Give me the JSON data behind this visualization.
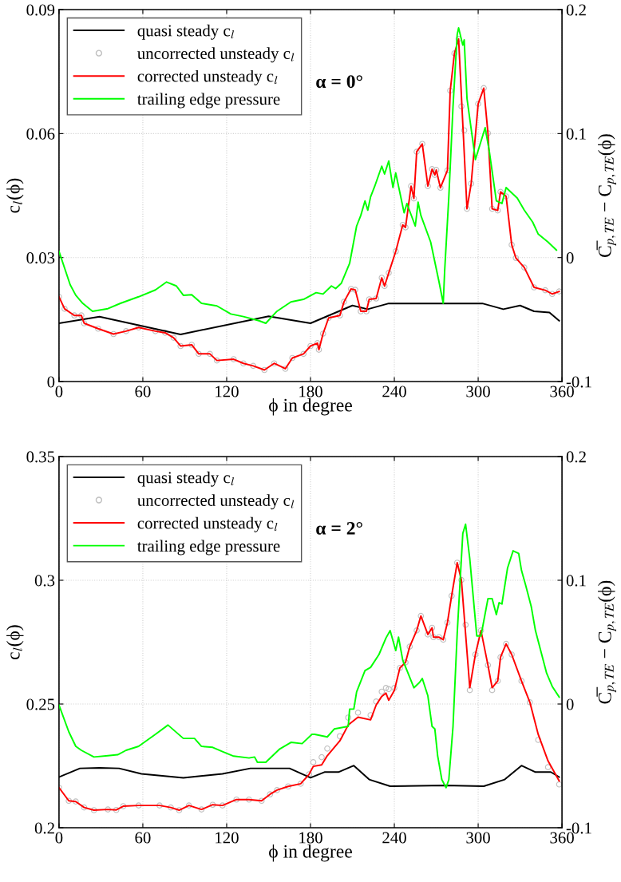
{
  "chart_data": [
    {
      "type": "line",
      "xlabel": "ϕ in degree",
      "ylabel": "c$_{l}$(ϕ)",
      "y2label": "C̅$_{p,TE}$ − C$_{p,TE}$(ϕ)",
      "annotations": [
        "α = 0°"
      ],
      "xlim": [
        0,
        360
      ],
      "xticks": [
        0,
        60,
        120,
        180,
        240,
        300,
        360
      ],
      "ylim": [
        0,
        0.09
      ],
      "yticks": [
        0,
        0.03,
        0.06,
        0.09
      ],
      "y2lim": [
        -0.1,
        0.2
      ],
      "y2ticks": [
        -0.1,
        0,
        0.1,
        0.2
      ],
      "grid": true,
      "legend": "top left",
      "series": [
        {
          "name": "quasi steady c$_{l}$",
          "color": "#000000",
          "marker": "none",
          "x": [
            0,
            29,
            87,
            150,
            180,
            210,
            221,
            236,
            303,
            318,
            330,
            340,
            351,
            358
          ],
          "values": [
            0.0141,
            0.0157,
            0.0114,
            0.0158,
            0.0141,
            0.0184,
            0.0175,
            0.0189,
            0.0189,
            0.0175,
            0.0184,
            0.017,
            0.0167,
            0.0147
          ]
        },
        {
          "name": "uncorrected unsteady c$_{l}$",
          "type": "scatter",
          "color": "#bfbfbf",
          "marker": "circle",
          "x": [
            0,
            4,
            11,
            16,
            18,
            28,
            39,
            48,
            57,
            69,
            76,
            82,
            87,
            95,
            100,
            108,
            113,
            125,
            132,
            139,
            147,
            154,
            162,
            167,
            175,
            180,
            185,
            186,
            189,
            193,
            201,
            204,
            209,
            212,
            216,
            220,
            222,
            227,
            231,
            233,
            236,
            241,
            246,
            248,
            252,
            254,
            256,
            260,
            264,
            267,
            269,
            270,
            273,
            278,
            280,
            283,
            286,
            288,
            290,
            292,
            295,
            300,
            304,
            307,
            310,
            314,
            316,
            320,
            324,
            327,
            333,
            340,
            348,
            353,
            358
          ],
          "values": [
            0.0205,
            0.0176,
            0.016,
            0.016,
            0.0141,
            0.0128,
            0.0115,
            0.0122,
            0.0131,
            0.0122,
            0.0118,
            0.0106,
            0.0086,
            0.0089,
            0.0067,
            0.0067,
            0.0051,
            0.0054,
            0.0044,
            0.0038,
            0.0028,
            0.0044,
            0.0031,
            0.0057,
            0.0067,
            0.0086,
            0.0093,
            0.0077,
            0.0116,
            0.0154,
            0.016,
            0.0193,
            0.0224,
            0.0222,
            0.017,
            0.017,
            0.0199,
            0.0201,
            0.0251,
            0.0231,
            0.0263,
            0.0315,
            0.0379,
            0.0373,
            0.0473,
            0.0443,
            0.0556,
            0.0575,
            0.0473,
            0.0514,
            0.05,
            0.0512,
            0.0469,
            0.0511,
            0.0704,
            0.0794,
            0.0829,
            0.0666,
            0.0608,
            0.0418,
            0.0479,
            0.0672,
            0.071,
            0.0601,
            0.0418,
            0.0414,
            0.0459,
            0.0448,
            0.0331,
            0.0299,
            0.0276,
            0.0228,
            0.0221,
            0.0212,
            0.0218
          ]
        },
        {
          "name": "corrected unsteady c$_{l}$",
          "color": "#ff0000",
          "marker": "none",
          "x": [
            0,
            4,
            11,
            16,
            18,
            28,
            39,
            48,
            57,
            69,
            76,
            82,
            87,
            95,
            100,
            108,
            113,
            125,
            132,
            139,
            147,
            154,
            162,
            167,
            175,
            180,
            185,
            186,
            189,
            193,
            201,
            204,
            209,
            212,
            216,
            220,
            222,
            227,
            231,
            233,
            236,
            241,
            246,
            248,
            252,
            254,
            256,
            260,
            264,
            267,
            269,
            270,
            273,
            278,
            280,
            283,
            286,
            292,
            295,
            300,
            304,
            307,
            310,
            314,
            316,
            320,
            324,
            327,
            333,
            340,
            348,
            353,
            358
          ],
          "values": [
            0.0205,
            0.0176,
            0.016,
            0.016,
            0.0141,
            0.0128,
            0.0115,
            0.0122,
            0.0131,
            0.0122,
            0.0118,
            0.0106,
            0.0086,
            0.0089,
            0.0067,
            0.0067,
            0.0051,
            0.0054,
            0.0044,
            0.0038,
            0.0028,
            0.0044,
            0.0031,
            0.0057,
            0.0067,
            0.0086,
            0.0093,
            0.0077,
            0.0116,
            0.0154,
            0.016,
            0.0193,
            0.0224,
            0.0222,
            0.017,
            0.017,
            0.0199,
            0.0201,
            0.0251,
            0.0231,
            0.0263,
            0.0315,
            0.0379,
            0.0373,
            0.0473,
            0.0443,
            0.0556,
            0.0575,
            0.0473,
            0.0514,
            0.05,
            0.0512,
            0.0469,
            0.0511,
            0.0704,
            0.0794,
            0.0829,
            0.0418,
            0.0479,
            0.0672,
            0.071,
            0.0601,
            0.0418,
            0.0414,
            0.0459,
            0.0448,
            0.0331,
            0.0299,
            0.0276,
            0.0228,
            0.0221,
            0.0212,
            0.0218
          ]
        },
        {
          "name": "trailing edge pressure",
          "axis": "y2",
          "color": "#00ff00",
          "marker": "none",
          "x": [
            0,
            8,
            12,
            17,
            24,
            35,
            44,
            57,
            69,
            77,
            84,
            89,
            95,
            102,
            113,
            123,
            132,
            143,
            148,
            156,
            166,
            175,
            184,
            189,
            195,
            198,
            202,
            208,
            213,
            216,
            219,
            221,
            223,
            226,
            231,
            233,
            236,
            239,
            241,
            247,
            249,
            255,
            257,
            259,
            266,
            272,
            275,
            276,
            279,
            282,
            285,
            286,
            289,
            290,
            292,
            298,
            305,
            308,
            313,
            317,
            320,
            328,
            333,
            339,
            343,
            350,
            356
          ],
          "values": [
            0.005,
            -0.0219,
            -0.0304,
            -0.0369,
            -0.0433,
            -0.0412,
            -0.0369,
            -0.0316,
            -0.0261,
            -0.0197,
            -0.0229,
            -0.0304,
            -0.03,
            -0.0369,
            -0.039,
            -0.0455,
            -0.0476,
            -0.0509,
            -0.053,
            -0.0433,
            -0.0358,
            -0.0337,
            -0.0283,
            -0.0294,
            -0.0229,
            -0.025,
            -0.0208,
            -0.0047,
            0.0254,
            0.034,
            0.0457,
            0.0382,
            0.049,
            0.0576,
            0.0737,
            0.0674,
            0.0779,
            0.0565,
            0.0683,
            0.0361,
            0.0436,
            0.0254,
            0.0447,
            0.034,
            0.0125,
            -0.0197,
            -0.0369,
            -0.0111,
            0.049,
            0.122,
            0.18,
            0.1853,
            0.1713,
            0.1756,
            0.1284,
            0.079,
            0.1048,
            0.0855,
            0.0457,
            0.0436,
            0.0565,
            0.0479,
            0.0383,
            0.0286,
            0.0189,
            0.0125,
            0.006
          ]
        }
      ]
    },
    {
      "type": "line",
      "xlabel": "ϕ in degree",
      "ylabel": "c$_{l}$(ϕ)",
      "y2label": "C̅$_{p,TE}$ − C$_{p,TE}$(ϕ)",
      "annotations": [
        "α = 2°"
      ],
      "xlim": [
        0,
        360
      ],
      "xticks": [
        0,
        60,
        120,
        180,
        240,
        300,
        360
      ],
      "ylim": [
        0.2,
        0.35
      ],
      "yticks": [
        0.2,
        0.25,
        0.3,
        0.35
      ],
      "y2lim": [
        -0.1,
        0.2
      ],
      "y2ticks": [
        -0.1,
        0,
        0.1,
        0.2
      ],
      "grid": true,
      "legend": "top left",
      "series": [
        {
          "name": "quasi steady c$_{l}$",
          "color": "#000000",
          "marker": "none",
          "x": [
            0,
            15,
            29,
            43,
            59,
            89,
            117,
            137,
            165,
            180,
            190,
            200,
            211,
            222,
            237,
            276,
            304,
            319,
            331,
            341,
            352,
            358
          ],
          "values": [
            0.2205,
            0.224,
            0.2242,
            0.224,
            0.2218,
            0.2202,
            0.2218,
            0.224,
            0.224,
            0.2202,
            0.2225,
            0.2225,
            0.2251,
            0.2195,
            0.2168,
            0.2171,
            0.2168,
            0.2195,
            0.2251,
            0.2225,
            0.2225,
            0.2205
          ]
        },
        {
          "name": "uncorrected unsteady c$_{l}$",
          "type": "scatter",
          "color": "#bfbfbf",
          "marker": "circle",
          "x": [
            0,
            7,
            12,
            18,
            25,
            35,
            41,
            46,
            57,
            72,
            80,
            86,
            93,
            102,
            110,
            117,
            127,
            136,
            145,
            151,
            156,
            164,
            173,
            179,
            182,
            188,
            192,
            201,
            207,
            214,
            223,
            227,
            231,
            234,
            236,
            240,
            244,
            248,
            251,
            256,
            259,
            264,
            267,
            268,
            272,
            275,
            278,
            281,
            285,
            288,
            291,
            294,
            298,
            302,
            307,
            310,
            314,
            316,
            320,
            324,
            331,
            337,
            343,
            350,
            358
          ],
          "values": [
            0.2162,
            0.2109,
            0.2106,
            0.2082,
            0.2071,
            0.2074,
            0.2072,
            0.2087,
            0.209,
            0.209,
            0.2082,
            0.2071,
            0.209,
            0.2074,
            0.2093,
            0.209,
            0.2114,
            0.2114,
            0.2109,
            0.2135,
            0.2152,
            0.2167,
            0.2178,
            0.2216,
            0.2265,
            0.2285,
            0.232,
            0.237,
            0.2445,
            0.2465,
            0.2455,
            0.251,
            0.255,
            0.2565,
            0.256,
            0.2565,
            0.2646,
            0.2668,
            0.2732,
            0.2797,
            0.2856,
            0.2781,
            0.2808,
            0.277,
            0.277,
            0.276,
            0.2829,
            0.2937,
            0.3071,
            0.3001,
            0.282,
            0.2556,
            0.27,
            0.2797,
            0.2657,
            0.2556,
            0.2593,
            0.2689,
            0.2743,
            0.27,
            0.2593,
            0.2507,
            0.2355,
            0.2245,
            0.2175
          ]
        },
        {
          "name": "corrected unsteady c$_{l}$",
          "color": "#ff0000",
          "marker": "none",
          "x": [
            0,
            7,
            12,
            18,
            25,
            35,
            41,
            46,
            57,
            72,
            80,
            86,
            93,
            102,
            110,
            117,
            127,
            136,
            145,
            151,
            156,
            164,
            173,
            179,
            182,
            188,
            192,
            201,
            207,
            214,
            223,
            227,
            231,
            234,
            236,
            240,
            244,
            248,
            251,
            256,
            259,
            264,
            267,
            268,
            272,
            275,
            278,
            281,
            285,
            288,
            294,
            298,
            302,
            307,
            310,
            314,
            316,
            320,
            324,
            331,
            337,
            343,
            350,
            358
          ],
          "values": [
            0.2162,
            0.2109,
            0.2106,
            0.2082,
            0.2071,
            0.2074,
            0.2072,
            0.2087,
            0.209,
            0.209,
            0.2082,
            0.2071,
            0.209,
            0.2074,
            0.2093,
            0.209,
            0.2114,
            0.2114,
            0.2109,
            0.2135,
            0.2152,
            0.2167,
            0.2178,
            0.2216,
            0.2248,
            0.2254,
            0.2291,
            0.2351,
            0.2415,
            0.2447,
            0.2436,
            0.2496,
            0.2531,
            0.2544,
            0.2515,
            0.2555,
            0.2646,
            0.2668,
            0.2732,
            0.2797,
            0.2856,
            0.2781,
            0.2808,
            0.277,
            0.277,
            0.276,
            0.2829,
            0.2937,
            0.3071,
            0.3001,
            0.2566,
            0.27,
            0.2797,
            0.2657,
            0.2566,
            0.2593,
            0.2689,
            0.2743,
            0.27,
            0.2593,
            0.2507,
            0.2377,
            0.227,
            0.2189
          ]
        },
        {
          "name": "trailing edge pressure",
          "axis": "y2",
          "color": "#00ff00",
          "marker": "none",
          "x": [
            0,
            7,
            12,
            16,
            25,
            35,
            42,
            48,
            57,
            69,
            78,
            89,
            97,
            102,
            110,
            117,
            125,
            136,
            140,
            142,
            148,
            158,
            166,
            174,
            181,
            183,
            192,
            197,
            207,
            208,
            211,
            213,
            219,
            223,
            229,
            234,
            237,
            241,
            243,
            246,
            254,
            258,
            260,
            264,
            267,
            269,
            271,
            274,
            277,
            279,
            282,
            285,
            289,
            291,
            294,
            299,
            302,
            307,
            310,
            313,
            315,
            317,
            321,
            325,
            329,
            331,
            334,
            338,
            341,
            349,
            353,
            358
          ],
          "values": [
            -0.0009,
            -0.0224,
            -0.0342,
            -0.0374,
            -0.0428,
            -0.0417,
            -0.041,
            -0.0374,
            -0.0342,
            -0.0245,
            -0.017,
            -0.0278,
            -0.0278,
            -0.0342,
            -0.035,
            -0.0385,
            -0.0421,
            -0.0436,
            -0.0428,
            -0.0471,
            -0.0471,
            -0.0363,
            -0.031,
            -0.032,
            -0.0245,
            -0.0245,
            -0.0266,
            -0.0202,
            -0.0181,
            -0.0041,
            -0.0041,
            0.0098,
            0.027,
            0.0296,
            0.04,
            0.0533,
            0.0593,
            0.0432,
            0.054,
            0.0356,
            0.0131,
            0.0174,
            0.0206,
            0.0066,
            -0.0181,
            -0.0202,
            -0.0418,
            -0.0611,
            -0.0676,
            -0.0611,
            -0.0181,
            0.0572,
            0.1378,
            0.1453,
            0.1173,
            0.055,
            0.055,
            0.0851,
            0.0851,
            0.0722,
            0.0819,
            0.0808,
            0.1098,
            0.1238,
            0.1217,
            0.108,
            0.0959,
            0.0787,
            0.0593,
            0.0249,
            0.0142,
            0.0056
          ]
        }
      ]
    }
  ]
}
